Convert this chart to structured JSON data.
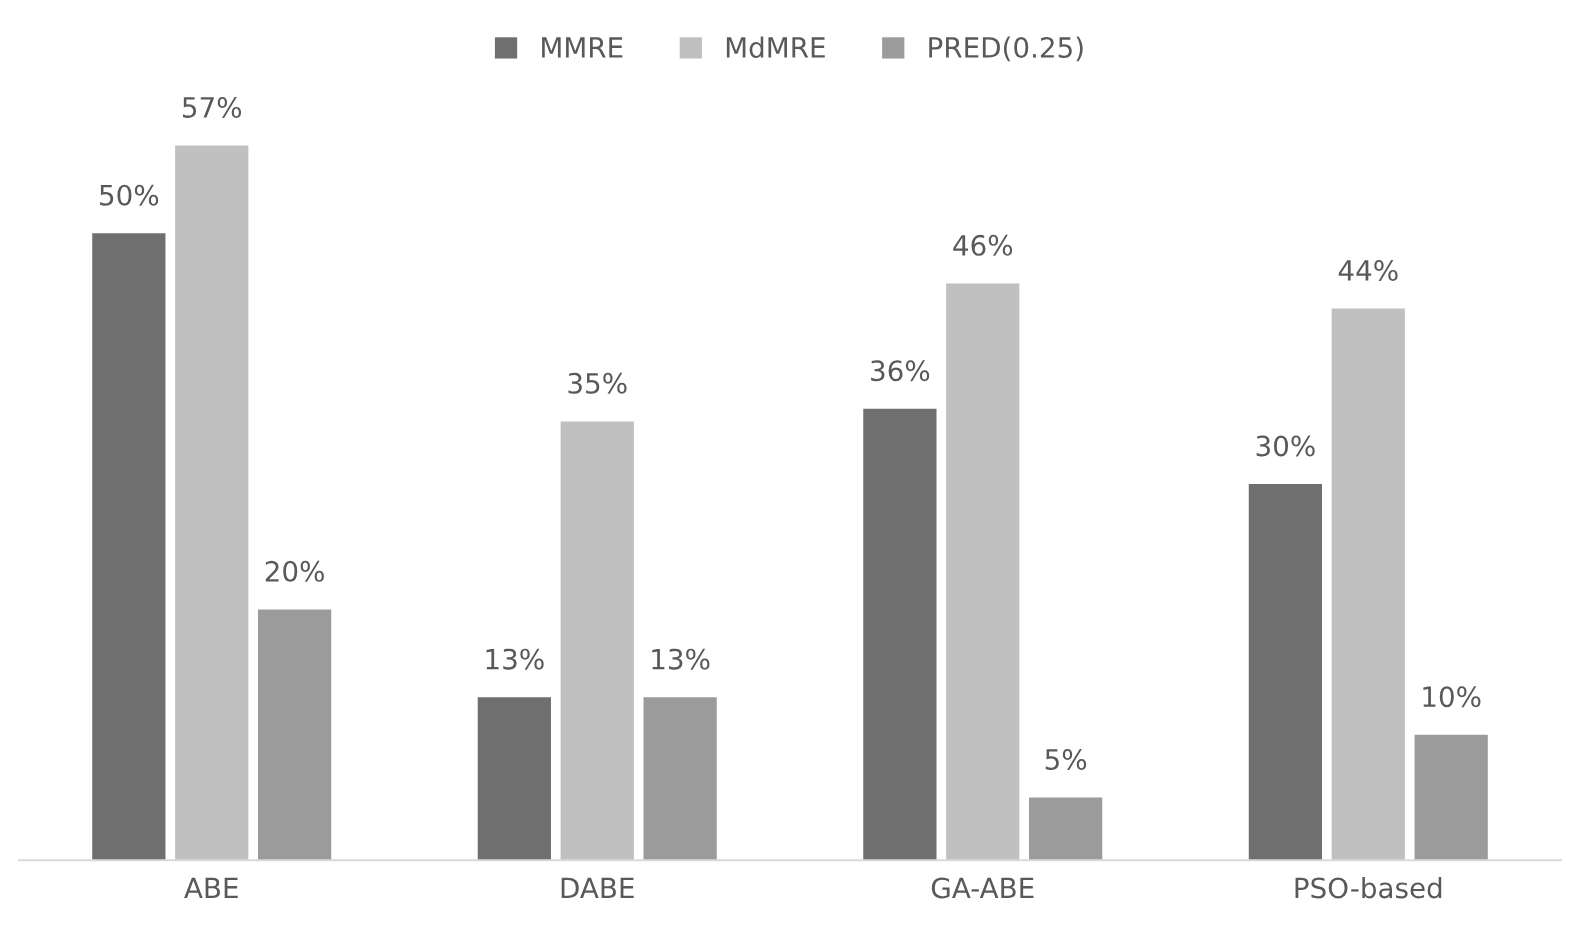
{
  "chart_data": {
    "type": "bar",
    "categories": [
      "ABE",
      "DABE",
      "GA-ABE",
      "PSO-based"
    ],
    "series": [
      {
        "name": "MMRE",
        "color": "#6f6f6f",
        "values": [
          50,
          13,
          36,
          30
        ],
        "value_labels": [
          "50%",
          "13%",
          "36%",
          "30%"
        ]
      },
      {
        "name": "MdMRE",
        "color": "#c0c0c0",
        "values": [
          57,
          35,
          46,
          44
        ],
        "value_labels": [
          "57%",
          "35%",
          "46%",
          "44%"
        ]
      },
      {
        "name": "PRED(0.25)",
        "color": "#9b9b9b",
        "values": [
          20,
          13,
          5,
          10
        ],
        "value_labels": [
          "20%",
          "13%",
          "5%",
          "10%"
        ]
      }
    ],
    "legend": "top",
    "grid": false
  }
}
